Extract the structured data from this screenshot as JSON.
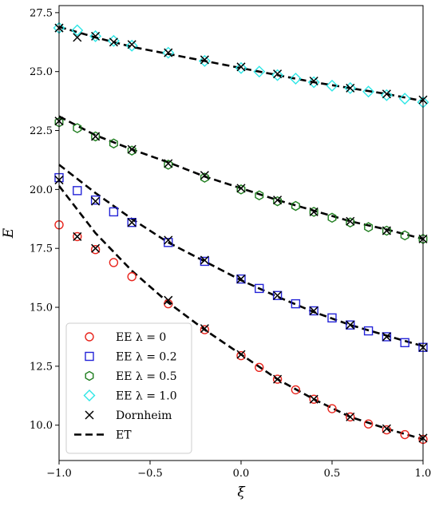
{
  "chart_data": {
    "type": "scatter",
    "title": "",
    "xlabel": "ξ",
    "ylabel": "E",
    "xlim": [
      -1.0,
      1.0
    ],
    "ylim": [
      8.5,
      27.8
    ],
    "x_ticks": [
      -1.0,
      -0.5,
      0.0,
      0.5,
      1.0
    ],
    "x_tick_labels": [
      "−1.0",
      "−0.5",
      "0.0",
      "0.5",
      "1.0"
    ],
    "y_ticks": [
      10.0,
      12.5,
      15.0,
      17.5,
      20.0,
      22.5,
      25.0,
      27.5
    ],
    "y_tick_labels": [
      "10.0",
      "12.5",
      "15.0",
      "17.5",
      "20.0",
      "22.5",
      "25.0",
      "27.5"
    ],
    "grid": false,
    "legend_position": "bottom-left",
    "legend": [
      {
        "label": "EE λ = 0",
        "marker": "circle",
        "color": "#e8241c"
      },
      {
        "label": "EE λ = 0.2",
        "marker": "square",
        "color": "#2424d8"
      },
      {
        "label": "EE λ = 0.5",
        "marker": "hexagon",
        "color": "#1e7d1e"
      },
      {
        "label": "EE λ = 1.0",
        "marker": "diamond",
        "color": "#2ee6e6"
      },
      {
        "label": "Dornheim",
        "marker": "x",
        "color": "#000000"
      },
      {
        "label": "ET",
        "marker": "dashed-line",
        "color": "#000000"
      }
    ],
    "series": [
      {
        "name": "EE λ = 0",
        "marker": "circle",
        "color": "#e8241c",
        "x": [
          -1.0,
          -0.9,
          -0.8,
          -0.7,
          -0.6,
          -0.4,
          -0.2,
          0.0,
          0.1,
          0.2,
          0.3,
          0.4,
          0.5,
          0.6,
          0.7,
          0.8,
          0.9,
          1.0
        ],
        "y": [
          18.5,
          18.0,
          17.45,
          16.9,
          16.3,
          15.15,
          14.05,
          12.95,
          12.45,
          11.95,
          11.5,
          11.1,
          10.7,
          10.35,
          10.05,
          9.8,
          9.6,
          9.4
        ]
      },
      {
        "name": "EE λ = 0.2",
        "marker": "square",
        "color": "#2424d8",
        "x": [
          -1.0,
          -0.9,
          -0.8,
          -0.7,
          -0.6,
          -0.4,
          -0.2,
          0.0,
          0.1,
          0.2,
          0.3,
          0.4,
          0.5,
          0.6,
          0.7,
          0.8,
          0.9,
          1.0
        ],
        "y": [
          20.5,
          19.95,
          19.55,
          19.05,
          18.6,
          17.75,
          16.95,
          16.2,
          15.8,
          15.5,
          15.15,
          14.85,
          14.55,
          14.25,
          14.0,
          13.75,
          13.5,
          13.3
        ]
      },
      {
        "name": "EE λ = 0.5",
        "marker": "hexagon",
        "color": "#1e7d1e",
        "x": [
          -1.0,
          -0.9,
          -0.8,
          -0.7,
          -0.6,
          -0.4,
          -0.2,
          0.0,
          0.1,
          0.2,
          0.3,
          0.4,
          0.5,
          0.6,
          0.7,
          0.8,
          0.9,
          1.0
        ],
        "y": [
          22.85,
          22.6,
          22.25,
          21.95,
          21.65,
          21.05,
          20.5,
          20.0,
          19.75,
          19.5,
          19.3,
          19.05,
          18.8,
          18.6,
          18.4,
          18.25,
          18.05,
          17.9
        ]
      },
      {
        "name": "EE λ = 1.0",
        "marker": "diamond",
        "color": "#2ee6e6",
        "x": [
          -1.0,
          -0.9,
          -0.8,
          -0.7,
          -0.6,
          -0.4,
          -0.2,
          0.0,
          0.1,
          0.2,
          0.3,
          0.4,
          0.5,
          0.6,
          0.7,
          0.8,
          0.9,
          1.0
        ],
        "y": [
          26.85,
          26.75,
          26.5,
          26.3,
          26.1,
          25.8,
          25.45,
          25.15,
          25.0,
          24.85,
          24.7,
          24.55,
          24.4,
          24.3,
          24.15,
          24.0,
          23.85,
          23.7
        ]
      },
      {
        "name": "Dornheim",
        "marker": "x",
        "color": "#000000",
        "x": [
          -1.0,
          -0.9,
          -0.8,
          -0.7,
          -0.6,
          -0.4,
          -0.2,
          0.0,
          0.2,
          0.4,
          0.6,
          0.8,
          1.0,
          -1.0,
          -0.8,
          -0.6,
          -0.4,
          -0.2,
          0.0,
          0.2,
          0.4,
          0.6,
          0.8,
          1.0,
          -1.0,
          -0.8,
          -0.6,
          -0.4,
          -0.2,
          0.0,
          0.2,
          0.4,
          0.6,
          0.8,
          1.0,
          -0.9,
          -0.8,
          -0.4,
          -0.2,
          0.0,
          0.2,
          0.4,
          0.6,
          0.8,
          1.0
        ],
        "y": [
          26.85,
          26.45,
          26.5,
          26.25,
          26.15,
          25.8,
          25.5,
          25.2,
          24.9,
          24.6,
          24.3,
          24.05,
          23.8,
          22.9,
          22.25,
          21.7,
          21.1,
          20.6,
          20.05,
          19.55,
          19.05,
          18.65,
          18.25,
          17.9,
          20.4,
          19.5,
          18.6,
          17.85,
          17.0,
          16.2,
          15.5,
          14.85,
          14.25,
          13.75,
          13.3,
          18.0,
          17.5,
          15.3,
          14.1,
          13.0,
          11.95,
          11.1,
          10.35,
          9.85,
          9.45
        ]
      }
    ],
    "lines": [
      {
        "name": "ET",
        "style": "dashed",
        "color": "#000000",
        "x": [
          -1.0,
          -0.8,
          -0.6,
          -0.4,
          -0.2,
          0.0,
          0.2,
          0.4,
          0.6,
          0.8,
          1.0
        ],
        "y": [
          26.9,
          26.45,
          26.05,
          25.75,
          25.45,
          25.15,
          24.85,
          24.55,
          24.3,
          24.05,
          23.75
        ]
      },
      {
        "name": "ET",
        "style": "dashed",
        "color": "#000000",
        "x": [
          -1.0,
          -0.8,
          -0.6,
          -0.4,
          -0.2,
          0.0,
          0.2,
          0.4,
          0.6,
          0.8,
          1.0
        ],
        "y": [
          23.1,
          22.3,
          21.7,
          21.15,
          20.55,
          20.05,
          19.55,
          19.1,
          18.65,
          18.3,
          17.9
        ]
      },
      {
        "name": "ET",
        "style": "dashed",
        "color": "#000000",
        "x": [
          -1.0,
          -0.8,
          -0.6,
          -0.4,
          -0.2,
          0.0,
          0.2,
          0.4,
          0.6,
          0.8,
          1.0
        ],
        "y": [
          21.05,
          19.85,
          18.75,
          17.75,
          16.95,
          16.15,
          15.45,
          14.8,
          14.25,
          13.8,
          13.35
        ]
      },
      {
        "name": "ET",
        "style": "dashed",
        "color": "#000000",
        "x": [
          -1.0,
          -0.8,
          -0.6,
          -0.4,
          -0.2,
          0.0,
          0.2,
          0.4,
          0.6,
          0.8,
          1.0
        ],
        "y": [
          20.15,
          18.15,
          16.55,
          15.2,
          14.05,
          13.0,
          11.95,
          11.1,
          10.35,
          9.85,
          9.4
        ]
      }
    ]
  }
}
